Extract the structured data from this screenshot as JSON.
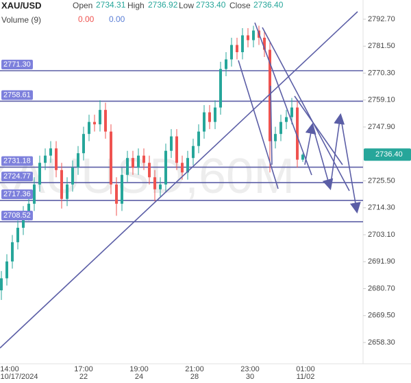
{
  "header": {
    "symbol": "XAU/USD",
    "open_label": "Open",
    "open": "2734.31",
    "high_label": "High",
    "high": "2736.92",
    "low_label": "Low",
    "low": "2733.40",
    "close_label": "Close",
    "close": "2736.40",
    "volume_label": "Volume (9)",
    "volume_values": [
      "0.00",
      "0.00"
    ]
  },
  "watermark": "XAUUSD,60M",
  "time_labels": [
    "14:00",
    "17:00",
    "19:00",
    "21:00",
    "23:00",
    "01:00"
  ],
  "date_labels": [
    "10/17/2024",
    "22",
    "24",
    "28",
    "30",
    "11/02"
  ],
  "chart_data": {
    "type": "candlestick",
    "open": [
      2680,
      2685,
      2692,
      2700,
      2706,
      2712,
      2716,
      2724,
      2733,
      2736,
      2739,
      2730,
      2718,
      2724,
      2731,
      2737,
      2745,
      2750,
      2749,
      2755,
      2746,
      2724,
      2716,
      2728,
      2735,
      2731,
      2736,
      2733,
      2727,
      2722,
      2724,
      2738,
      2744,
      2733,
      2729,
      2735,
      2740,
      2746,
      2754,
      2750,
      2756,
      2772,
      2776,
      2782,
      2779,
      2786,
      2784,
      2788,
      2785,
      2780,
      2742,
      2745,
      2750,
      2752,
      2756,
      2734.31
    ],
    "high": [
      2688,
      2695,
      2703,
      2709,
      2715,
      2719,
      2727,
      2736,
      2739,
      2742,
      2742,
      2733,
      2727,
      2734,
      2740,
      2748,
      2753,
      2753,
      2759,
      2758,
      2749,
      2727,
      2731,
      2738,
      2738,
      2739,
      2739,
      2736,
      2730,
      2727,
      2741,
      2747,
      2747,
      2736,
      2738,
      2743,
      2749,
      2757,
      2757,
      2759,
      2775,
      2779,
      2785,
      2785,
      2789,
      2789,
      2790,
      2790,
      2788,
      2783,
      2748,
      2753,
      2755,
      2760,
      2759,
      2736.92
    ],
    "low": [
      2676,
      2682,
      2689,
      2697,
      2703,
      2709,
      2713,
      2721,
      2730,
      2733,
      2727,
      2714,
      2715,
      2721,
      2728,
      2734,
      2742,
      2746,
      2746,
      2743,
      2720,
      2711,
      2713,
      2725,
      2728,
      2728,
      2730,
      2724,
      2717,
      2719,
      2721,
      2735,
      2730,
      2726,
      2726,
      2732,
      2737,
      2743,
      2747,
      2747,
      2753,
      2769,
      2773,
      2776,
      2776,
      2781,
      2781,
      2782,
      2777,
      2729,
      2739,
      2742,
      2747,
      2749,
      2731,
      2733.4
    ],
    "close": [
      2685,
      2692,
      2700,
      2706,
      2712,
      2716,
      2724,
      2733,
      2736,
      2739,
      2730,
      2718,
      2724,
      2731,
      2737,
      2745,
      2750,
      2749,
      2755,
      2746,
      2724,
      2716,
      2728,
      2735,
      2731,
      2736,
      2733,
      2727,
      2722,
      2724,
      2738,
      2744,
      2733,
      2729,
      2735,
      2740,
      2746,
      2754,
      2750,
      2756,
      2772,
      2776,
      2782,
      2779,
      2786,
      2784,
      2788,
      2785,
      2780,
      2742,
      2745,
      2750,
      2752,
      2756,
      2734.31,
      2736.4
    ],
    "last_price_label": "2736.40",
    "up_color": "#26a69a",
    "down_color": "#ef5350",
    "ylim": [
      2649.46,
      2800.69
    ],
    "yticks": [
      {
        "value": 2792.7,
        "label": "2792.70"
      },
      {
        "value": 2781.5,
        "label": "2781.50"
      },
      {
        "value": 2770.3,
        "label": "2770.30"
      },
      {
        "value": 2759.1,
        "label": "2759.10"
      },
      {
        "value": 2747.9,
        "label": "2747.90"
      },
      {
        "value": 2725.5,
        "label": "2725.50"
      },
      {
        "value": 2714.3,
        "label": "2714.30"
      },
      {
        "value": 2703.1,
        "label": "2703.10"
      },
      {
        "value": 2691.9,
        "label": "2691.90"
      },
      {
        "value": 2680.7,
        "label": "2680.70"
      },
      {
        "value": 2669.5,
        "label": "2669.50"
      },
      {
        "value": 2658.3,
        "label": "2658.30"
      }
    ],
    "levels": [
      {
        "value": 2771.3,
        "label": "2771.30"
      },
      {
        "value": 2758.61,
        "label": "2758.61"
      },
      {
        "value": 2731.18,
        "label": "2731.18"
      },
      {
        "value": 2724.77,
        "label": "2724.77"
      },
      {
        "value": 2717.36,
        "label": "2717.36"
      },
      {
        "value": 2708.52,
        "label": "2708.52"
      }
    ],
    "level_color": "#5b5ea6"
  }
}
